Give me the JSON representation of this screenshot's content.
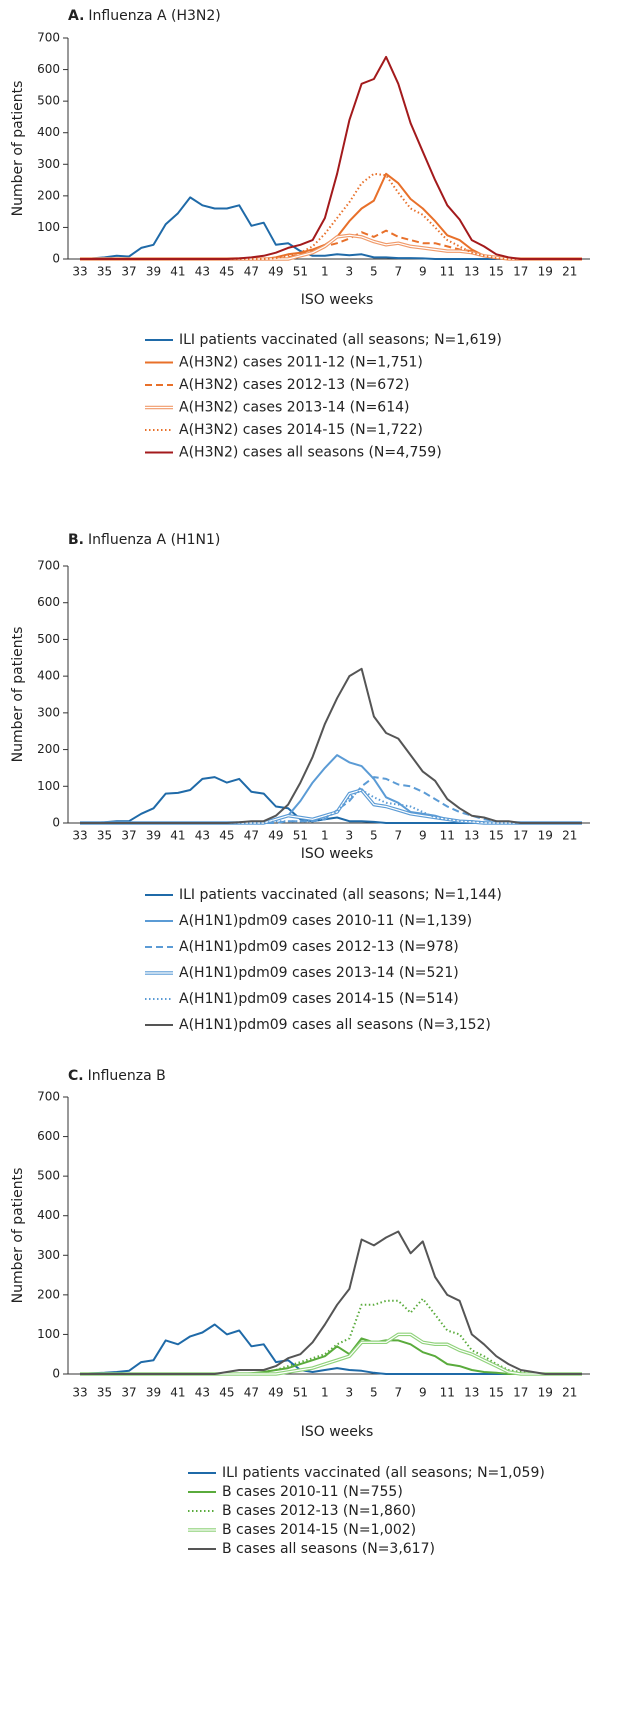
{
  "chart_data": [
    {
      "type": "line",
      "label": "A.",
      "title": "Influenza A (H3N2)",
      "y_label": "Number of patients",
      "x_label": "ISO weeks",
      "categories": [
        "33",
        null,
        "35",
        null,
        "37",
        null,
        "39",
        null,
        "41",
        null,
        "43",
        null,
        "45",
        null,
        "47",
        null,
        "49",
        null,
        "51",
        null,
        "1",
        null,
        "3",
        null,
        "5",
        null,
        "7",
        null,
        "9",
        null,
        "11",
        null,
        "13",
        null,
        "15",
        null,
        "17",
        null,
        "19",
        null,
        "21",
        null
      ],
      "ylim": [
        0,
        700
      ],
      "yticks": [
        0,
        100,
        200,
        300,
        400,
        500,
        600,
        700
      ],
      "series": [
        {
          "name": "ILI patients vaccinated (all seasons; N=1,619)",
          "color": "#1f6aa8",
          "style": "solid",
          "values": [
            0,
            2,
            5,
            10,
            8,
            35,
            45,
            110,
            145,
            195,
            170,
            160,
            160,
            170,
            105,
            115,
            45,
            50,
            25,
            10,
            10,
            15,
            12,
            15,
            5,
            5,
            3,
            3,
            2,
            0,
            0,
            0,
            0,
            0,
            0,
            0,
            0,
            0,
            0,
            0,
            0,
            0
          ]
        },
        {
          "name": "A(H3N2) cases 2011-12 (N=1,751)",
          "color": "#e8702a",
          "style": "solid",
          "values": [
            0,
            0,
            0,
            0,
            0,
            0,
            0,
            0,
            0,
            0,
            0,
            0,
            0,
            0,
            0,
            0,
            5,
            15,
            20,
            30,
            45,
            70,
            120,
            160,
            185,
            270,
            240,
            190,
            160,
            120,
            75,
            60,
            30,
            10,
            2,
            0,
            0,
            0,
            0,
            0,
            0,
            0
          ]
        },
        {
          "name": "A(H3N2) cases 2012-13 (N=672)",
          "color": "#e8702a",
          "style": "dashed",
          "values": [
            0,
            0,
            0,
            0,
            0,
            0,
            0,
            0,
            0,
            0,
            0,
            0,
            0,
            0,
            0,
            0,
            0,
            5,
            15,
            25,
            40,
            50,
            65,
            85,
            70,
            90,
            70,
            60,
            50,
            50,
            40,
            30,
            25,
            10,
            5,
            0,
            0,
            0,
            0,
            0,
            0,
            0
          ]
        },
        {
          "name": "A(H3N2) cases 2013-14 (N=614)",
          "color": "#f09a6a",
          "style": "double",
          "values": [
            0,
            0,
            0,
            0,
            0,
            0,
            0,
            0,
            0,
            0,
            0,
            0,
            0,
            0,
            0,
            0,
            0,
            0,
            10,
            20,
            40,
            70,
            75,
            70,
            55,
            45,
            50,
            40,
            35,
            30,
            25,
            25,
            20,
            10,
            5,
            0,
            0,
            0,
            0,
            0,
            0,
            0
          ]
        },
        {
          "name": "A(H3N2) cases 2014-15 (N=1,722)",
          "color": "#e8702a",
          "style": "dotted",
          "values": [
            0,
            0,
            0,
            0,
            0,
            0,
            0,
            0,
            0,
            0,
            0,
            0,
            0,
            0,
            0,
            0,
            3,
            10,
            20,
            40,
            80,
            130,
            180,
            240,
            270,
            265,
            210,
            160,
            140,
            100,
            60,
            40,
            20,
            10,
            3,
            0,
            0,
            0,
            0,
            0,
            0,
            0
          ]
        },
        {
          "name": "A(H3N2) cases all seasons (N=4,759)",
          "color": "#a31a1c",
          "style": "solid",
          "values": [
            0,
            0,
            0,
            0,
            0,
            0,
            0,
            0,
            0,
            0,
            0,
            0,
            0,
            2,
            5,
            10,
            20,
            35,
            45,
            60,
            130,
            270,
            440,
            555,
            570,
            640,
            555,
            430,
            340,
            250,
            170,
            125,
            60,
            40,
            15,
            5,
            0,
            0,
            0,
            0,
            0,
            0
          ]
        }
      ]
    },
    {
      "type": "line",
      "label": "B.",
      "title": "Influenza A (H1N1)",
      "y_label": "Number of patients",
      "x_label": "ISO weeks",
      "categories": [
        "33",
        null,
        "35",
        null,
        "37",
        null,
        "39",
        null,
        "41",
        null,
        "43",
        null,
        "45",
        null,
        "47",
        null,
        "49",
        null,
        "51",
        null,
        "1",
        null,
        "3",
        null,
        "5",
        null,
        "7",
        null,
        "9",
        null,
        "11",
        null,
        "13",
        null,
        "15",
        null,
        "17",
        null,
        "19",
        null,
        "21",
        null
      ],
      "ylim": [
        0,
        700
      ],
      "yticks": [
        0,
        100,
        200,
        300,
        400,
        500,
        600,
        700
      ],
      "series": [
        {
          "name": "ILI patients vaccinated (all seasons; N=1,144)",
          "color": "#1f6aa8",
          "style": "solid",
          "values": [
            0,
            0,
            2,
            5,
            5,
            25,
            40,
            80,
            82,
            90,
            120,
            125,
            110,
            120,
            85,
            80,
            45,
            40,
            10,
            5,
            10,
            15,
            5,
            5,
            3,
            0,
            0,
            0,
            0,
            0,
            0,
            0,
            0,
            0,
            0,
            0,
            0,
            0,
            0,
            0,
            0,
            0
          ]
        },
        {
          "name": "A(H1N1)pdm09 cases 2010-11 (N=1,139)",
          "color": "#5b9bd5",
          "style": "solid",
          "values": [
            0,
            0,
            0,
            0,
            0,
            0,
            0,
            0,
            0,
            0,
            0,
            0,
            0,
            0,
            0,
            2,
            10,
            20,
            60,
            110,
            150,
            185,
            165,
            155,
            120,
            70,
            55,
            30,
            25,
            20,
            10,
            5,
            5,
            2,
            0,
            0,
            0,
            0,
            0,
            0,
            0,
            0
          ]
        },
        {
          "name": "A(H1N1)pdm09 cases 2012-13 (N=978)",
          "color": "#5b9bd5",
          "style": "dashed",
          "values": [
            0,
            0,
            0,
            0,
            0,
            0,
            0,
            0,
            0,
            0,
            0,
            0,
            0,
            0,
            0,
            0,
            0,
            5,
            5,
            5,
            10,
            35,
            60,
            100,
            125,
            120,
            105,
            100,
            85,
            65,
            45,
            30,
            20,
            10,
            5,
            0,
            0,
            0,
            0,
            0,
            0,
            0
          ]
        },
        {
          "name": "A(H1N1)pdm09 cases 2013-14 (N=521)",
          "color": "#5b9bd5",
          "style": "double",
          "values": [
            0,
            0,
            0,
            0,
            0,
            0,
            0,
            0,
            0,
            0,
            0,
            0,
            0,
            0,
            0,
            0,
            10,
            20,
            15,
            10,
            20,
            30,
            80,
            90,
            50,
            45,
            35,
            25,
            20,
            15,
            10,
            5,
            3,
            0,
            0,
            0,
            0,
            0,
            0,
            0,
            0,
            0
          ]
        },
        {
          "name": "A(H1N1)pdm09 cases 2014-15 (N=514)",
          "color": "#5b9bd5",
          "style": "dotted",
          "values": [
            0,
            0,
            0,
            0,
            0,
            0,
            0,
            0,
            0,
            0,
            0,
            0,
            0,
            0,
            0,
            0,
            5,
            5,
            5,
            5,
            15,
            30,
            70,
            90,
            70,
            55,
            50,
            45,
            30,
            15,
            10,
            5,
            5,
            2,
            0,
            0,
            0,
            0,
            0,
            0,
            0,
            0
          ]
        },
        {
          "name": "A(H1N1)pdm09 cases all seasons (N=3,152)",
          "color": "#555555",
          "style": "solid",
          "values": [
            0,
            0,
            0,
            0,
            0,
            0,
            0,
            0,
            0,
            0,
            0,
            0,
            0,
            2,
            5,
            5,
            20,
            50,
            110,
            180,
            270,
            340,
            400,
            420,
            290,
            245,
            230,
            185,
            140,
            115,
            65,
            40,
            20,
            15,
            5,
            5,
            0,
            0,
            0,
            0,
            0,
            0
          ]
        }
      ]
    },
    {
      "type": "line",
      "label": "C.",
      "title": "Influenza B",
      "y_label": "Number of patients",
      "x_label": "ISO weeks",
      "categories": [
        "33",
        null,
        "35",
        null,
        "37",
        null,
        "39",
        null,
        "41",
        null,
        "43",
        null,
        "45",
        null,
        "47",
        null,
        "49",
        null,
        "51",
        null,
        "1",
        null,
        "3",
        null,
        "5",
        null,
        "7",
        null,
        "9",
        null,
        "11",
        null,
        "13",
        null,
        "15",
        null,
        "17",
        null,
        "19",
        null,
        "21",
        null
      ],
      "ylim": [
        0,
        700
      ],
      "yticks": [
        0,
        100,
        200,
        300,
        400,
        500,
        600,
        700
      ],
      "series": [
        {
          "name": "ILI patients vaccinated (all seasons; N=1,059)",
          "color": "#1f6aa8",
          "style": "solid",
          "values": [
            0,
            2,
            3,
            5,
            8,
            30,
            35,
            85,
            75,
            95,
            105,
            125,
            100,
            110,
            70,
            75,
            30,
            35,
            10,
            5,
            10,
            15,
            10,
            8,
            3,
            0,
            0,
            0,
            0,
            0,
            0,
            0,
            0,
            0,
            0,
            0,
            0,
            0,
            0,
            0,
            0,
            0
          ]
        },
        {
          "name": "B cases 2010-11 (N=755)",
          "color": "#5aab3c",
          "style": "solid",
          "values": [
            0,
            0,
            0,
            0,
            0,
            0,
            0,
            0,
            0,
            0,
            0,
            0,
            0,
            0,
            2,
            5,
            10,
            15,
            25,
            35,
            45,
            70,
            50,
            90,
            80,
            85,
            85,
            75,
            55,
            45,
            25,
            20,
            10,
            5,
            3,
            0,
            0,
            0,
            0,
            0,
            0,
            0
          ]
        },
        {
          "name": "B cases 2012-13 (N=1,860)",
          "color": "#5aab3c",
          "style": "dotted",
          "values": [
            0,
            0,
            0,
            0,
            0,
            0,
            0,
            0,
            0,
            0,
            0,
            0,
            0,
            0,
            0,
            5,
            10,
            20,
            30,
            40,
            50,
            75,
            90,
            175,
            175,
            185,
            185,
            155,
            190,
            150,
            110,
            100,
            60,
            45,
            25,
            10,
            5,
            0,
            0,
            0,
            0,
            0
          ]
        },
        {
          "name": "B cases 2014-15 (N=1,002)",
          "color": "#8fd27a",
          "style": "double",
          "values": [
            0,
            0,
            0,
            0,
            0,
            0,
            0,
            0,
            0,
            0,
            0,
            0,
            0,
            0,
            0,
            0,
            0,
            5,
            10,
            15,
            25,
            35,
            45,
            80,
            80,
            80,
            100,
            100,
            80,
            75,
            75,
            60,
            50,
            35,
            20,
            5,
            0,
            0,
            0,
            0,
            0,
            0
          ]
        },
        {
          "name": "B cases all seasons (N=3,617)",
          "color": "#555555",
          "style": "solid",
          "values": [
            0,
            0,
            0,
            0,
            0,
            0,
            0,
            0,
            0,
            0,
            0,
            0,
            5,
            10,
            10,
            10,
            20,
            40,
            50,
            80,
            125,
            175,
            215,
            340,
            325,
            345,
            360,
            305,
            335,
            245,
            200,
            185,
            100,
            75,
            45,
            25,
            10,
            5,
            0,
            0,
            0,
            0
          ]
        }
      ]
    }
  ]
}
